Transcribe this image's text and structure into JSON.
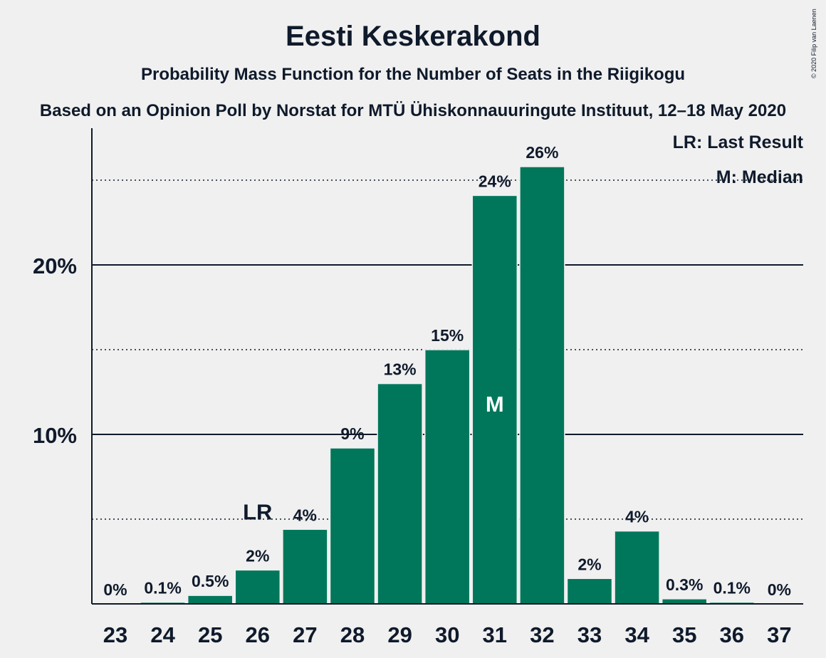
{
  "colors": {
    "bar": "#00775a",
    "text": "#0f1a2b",
    "background": "#f0f0f0"
  },
  "copyright": "© 2020 Filip van Laenen",
  "chart_data": {
    "type": "bar",
    "title": "Eesti Keskerakond",
    "subtitle": "Probability Mass Function for the Number of Seats in the Riigikogu",
    "subtitle2": "Based on an Opinion Poll by Norstat for MTÜ Ühiskonnauuringute Instituut, 12–18 May 2020",
    "categories": [
      "23",
      "24",
      "25",
      "26",
      "27",
      "28",
      "29",
      "30",
      "31",
      "32",
      "33",
      "34",
      "35",
      "36",
      "37"
    ],
    "values": [
      0,
      0.1,
      0.5,
      2,
      4.4,
      9.2,
      13,
      15,
      24.1,
      25.8,
      1.5,
      4.3,
      0.3,
      0.1,
      0
    ],
    "data_labels": [
      "0%",
      "0.1%",
      "0.5%",
      "2%",
      "4%",
      "9%",
      "13%",
      "15%",
      "24%",
      "26%",
      "2%",
      "4%",
      "0.3%",
      "0.1%",
      "0%"
    ],
    "ylim": [
      0,
      28
    ],
    "yticks": [
      {
        "value": 10,
        "label": "10%"
      },
      {
        "value": 20,
        "label": "20%"
      }
    ],
    "minor_gridlines": [
      5,
      15,
      25
    ],
    "last_result": {
      "category": "26",
      "label": "LR"
    },
    "median": {
      "category": "31",
      "label": "M"
    },
    "legend": [
      "LR: Last Result",
      "M: Median"
    ],
    "legend_position": "top-right",
    "xlabel": "",
    "ylabel": ""
  }
}
